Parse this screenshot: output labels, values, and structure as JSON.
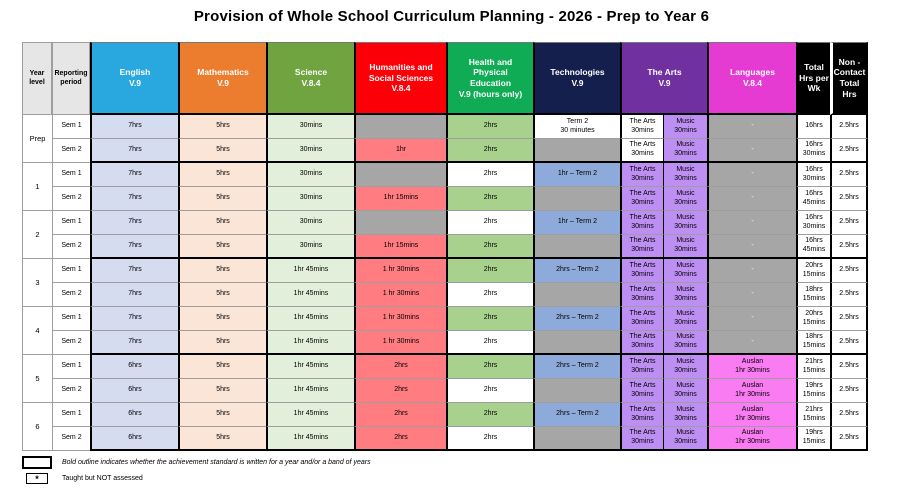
{
  "title": "Provision of Whole School Curriculum Planning - 2026 - Prep to Year 6",
  "palette": {
    "english": "#D6DCF0",
    "math": "#FBE5D6",
    "science": "#E2EFDA",
    "gray": "#A6A6A6",
    "salmon": "#FF7C80",
    "hpe_green": "#A9D18E",
    "white": "#FFFFFF",
    "tech_blue": "#8EAADB",
    "arts_purple": "#BE8FF2",
    "lang_pink": "#F97CF2"
  },
  "header": {
    "columns": [
      {
        "key": "year",
        "label": "Year level",
        "type": "corner"
      },
      {
        "key": "sem",
        "label": "Reporting period",
        "type": "corner"
      },
      {
        "key": "english",
        "label": "English\nV.9",
        "color": "#29A8E0"
      },
      {
        "key": "math",
        "label": "Mathematics\nV.9",
        "color": "#EC7D2F"
      },
      {
        "key": "science",
        "label": "Science\nV.8.4",
        "color": "#6FA441"
      },
      {
        "key": "hass",
        "label": "Humanities and\nSocial Sciences\nV.8.4",
        "color": "#FB0007"
      },
      {
        "key": "hpe",
        "label": "Health and\nPhysical\nEducation\nV.9 (hours only)",
        "color": "#10AC55"
      },
      {
        "key": "tech",
        "label": "Technologies\nV.9",
        "color": "#151F4E"
      },
      {
        "key": "arts",
        "label": "The Arts\nV.9",
        "color": "#7030A0",
        "span": 2
      },
      {
        "key": "lang",
        "label": "Languages\nV.8.4",
        "color": "#E63BD3"
      },
      {
        "key": "total",
        "label": "Total Hrs per Wk",
        "color": "#000000"
      },
      {
        "key": "nc",
        "label": "Non - Contact Total Hrs",
        "color": "#000000"
      }
    ]
  },
  "year_groups": [
    {
      "label": "Prep",
      "rows": [
        {
          "sem": "Sem 1",
          "english": {
            "text": "7hrs",
            "bg": "english"
          },
          "math": {
            "text": "5hrs",
            "bg": "math"
          },
          "science": {
            "text": "30mins",
            "bg": "science"
          },
          "hass": {
            "text": "",
            "bg": "gray"
          },
          "hpe": {
            "text": "2hrs",
            "bg": "hpe_green"
          },
          "tech": {
            "text": "Term 2\n30 minutes",
            "bg": "white"
          },
          "arts": [
            {
              "text": "The Arts\n30mins",
              "bg": "white"
            },
            {
              "text": "Music\n30mins",
              "bg": "arts_purple"
            }
          ],
          "lang": {
            "text": "-",
            "bg": "gray",
            "fg": "#fff"
          },
          "total": {
            "text": "16hrs",
            "bg": "white"
          },
          "nc": {
            "text": "2.5hrs",
            "bg": "white"
          }
        },
        {
          "sem": "Sem 2",
          "english": {
            "text": "7hrs",
            "bg": "english"
          },
          "math": {
            "text": "5hrs",
            "bg": "math"
          },
          "science": {
            "text": "30mins",
            "bg": "science"
          },
          "hass": {
            "text": "1hr",
            "bg": "salmon"
          },
          "hpe": {
            "text": "2hrs",
            "bg": "hpe_green"
          },
          "tech": {
            "text": "",
            "bg": "gray"
          },
          "arts": [
            {
              "text": "The Arts\n30mins",
              "bg": "white"
            },
            {
              "text": "Music\n30mins",
              "bg": "arts_purple"
            }
          ],
          "lang": {
            "text": "-",
            "bg": "gray",
            "fg": "#fff"
          },
          "total": {
            "text": "16hrs 30mins",
            "bg": "white"
          },
          "nc": {
            "text": "2.5hrs",
            "bg": "white"
          }
        }
      ]
    },
    {
      "label": "1",
      "rows": [
        {
          "sem": "Sem 1",
          "english": {
            "text": "7hrs",
            "bg": "english"
          },
          "math": {
            "text": "5hrs",
            "bg": "math"
          },
          "science": {
            "text": "30mins",
            "bg": "science"
          },
          "hass": {
            "text": "",
            "bg": "gray"
          },
          "hpe": {
            "text": "2hrs",
            "bg": "white"
          },
          "tech": {
            "text": "1hr – Term 2",
            "bg": "tech_blue"
          },
          "arts": [
            {
              "text": "The Arts\n30mins",
              "bg": "arts_purple"
            },
            {
              "text": "Music\n30mins",
              "bg": "arts_purple"
            }
          ],
          "lang": {
            "text": "-",
            "bg": "gray",
            "fg": "#fff"
          },
          "total": {
            "text": "16hrs 30mins",
            "bg": "white"
          },
          "nc": {
            "text": "2.5hrs",
            "bg": "white"
          }
        },
        {
          "sem": "Sem 2",
          "english": {
            "text": "7hrs",
            "bg": "english"
          },
          "math": {
            "text": "5hrs",
            "bg": "math"
          },
          "science": {
            "text": "30mins",
            "bg": "science"
          },
          "hass": {
            "text": "1hr 15mins",
            "bg": "salmon"
          },
          "hpe": {
            "text": "2hrs",
            "bg": "hpe_green"
          },
          "tech": {
            "text": "",
            "bg": "gray"
          },
          "arts": [
            {
              "text": "The Arts\n30mins",
              "bg": "arts_purple"
            },
            {
              "text": "Music\n30mins",
              "bg": "arts_purple"
            }
          ],
          "lang": {
            "text": "-",
            "bg": "gray",
            "fg": "#fff"
          },
          "total": {
            "text": "16hrs 45mins",
            "bg": "white"
          },
          "nc": {
            "text": "2.5hrs",
            "bg": "white"
          }
        }
      ]
    },
    {
      "label": "2",
      "rows": [
        {
          "sem": "Sem 1",
          "english": {
            "text": "7hrs",
            "bg": "english"
          },
          "math": {
            "text": "5hrs",
            "bg": "math"
          },
          "science": {
            "text": "30mins",
            "bg": "science"
          },
          "hass": {
            "text": "",
            "bg": "gray"
          },
          "hpe": {
            "text": "2hrs",
            "bg": "white"
          },
          "tech": {
            "text": "1hr – Term 2",
            "bg": "tech_blue"
          },
          "arts": [
            {
              "text": "The Arts\n30mins",
              "bg": "arts_purple"
            },
            {
              "text": "Music\n30mins",
              "bg": "arts_purple"
            }
          ],
          "lang": {
            "text": "-",
            "bg": "gray",
            "fg": "#fff"
          },
          "total": {
            "text": "16hrs 30mins",
            "bg": "white"
          },
          "nc": {
            "text": "2.5hrs",
            "bg": "white"
          }
        },
        {
          "sem": "Sem 2",
          "english": {
            "text": "7hrs",
            "bg": "english"
          },
          "math": {
            "text": "5hrs",
            "bg": "math"
          },
          "science": {
            "text": "30mins",
            "bg": "science"
          },
          "hass": {
            "text": "1hr 15mins",
            "bg": "salmon"
          },
          "hpe": {
            "text": "2hrs",
            "bg": "hpe_green"
          },
          "tech": {
            "text": "",
            "bg": "gray"
          },
          "arts": [
            {
              "text": "The Arts\n30mins",
              "bg": "arts_purple"
            },
            {
              "text": "Music\n30mins",
              "bg": "arts_purple"
            }
          ],
          "lang": {
            "text": "-",
            "bg": "gray",
            "fg": "#fff"
          },
          "total": {
            "text": "16hrs 45mins",
            "bg": "white"
          },
          "nc": {
            "text": "2.5hrs",
            "bg": "white"
          }
        }
      ]
    },
    {
      "label": "3",
      "rows": [
        {
          "sem": "Sem 1",
          "english": {
            "text": "7hrs",
            "bg": "english"
          },
          "math": {
            "text": "5hrs",
            "bg": "math"
          },
          "science": {
            "text": "1hr 45mins",
            "bg": "science"
          },
          "hass": {
            "text": "1 hr 30mins",
            "bg": "salmon"
          },
          "hpe": {
            "text": "2hrs",
            "bg": "hpe_green"
          },
          "tech": {
            "text": "2hrs – Term 2",
            "bg": "tech_blue"
          },
          "arts": [
            {
              "text": "The Arts\n30mins",
              "bg": "arts_purple"
            },
            {
              "text": "Music\n30mins",
              "bg": "arts_purple"
            }
          ],
          "lang": {
            "text": "-",
            "bg": "gray",
            "fg": "#fff"
          },
          "total": {
            "text": "20hrs 15mins",
            "bg": "white"
          },
          "nc": {
            "text": "2.5hrs",
            "bg": "white"
          }
        },
        {
          "sem": "Sem 2",
          "english": {
            "text": "7hrs",
            "bg": "english"
          },
          "math": {
            "text": "5hrs",
            "bg": "math"
          },
          "science": {
            "text": "1hr 45mins",
            "bg": "science"
          },
          "hass": {
            "text": "1 hr 30mins",
            "bg": "salmon"
          },
          "hpe": {
            "text": "2hrs",
            "bg": "white"
          },
          "tech": {
            "text": "",
            "bg": "gray"
          },
          "arts": [
            {
              "text": "The Arts\n30mins",
              "bg": "arts_purple"
            },
            {
              "text": "Music\n30mins",
              "bg": "arts_purple"
            }
          ],
          "lang": {
            "text": "-",
            "bg": "gray",
            "fg": "#fff"
          },
          "total": {
            "text": "18hrs 15mins",
            "bg": "white"
          },
          "nc": {
            "text": "2.5hrs",
            "bg": "white"
          }
        }
      ]
    },
    {
      "label": "4",
      "rows": [
        {
          "sem": "Sem 1",
          "english": {
            "text": "7hrs",
            "bg": "english"
          },
          "math": {
            "text": "5hrs",
            "bg": "math"
          },
          "science": {
            "text": "1hr 45mins",
            "bg": "science"
          },
          "hass": {
            "text": "1 hr 30mins",
            "bg": "salmon"
          },
          "hpe": {
            "text": "2hrs",
            "bg": "hpe_green"
          },
          "tech": {
            "text": "2hrs – Term 2",
            "bg": "tech_blue"
          },
          "arts": [
            {
              "text": "The Arts\n30mins",
              "bg": "arts_purple"
            },
            {
              "text": "Music\n30mins",
              "bg": "arts_purple"
            }
          ],
          "lang": {
            "text": "-",
            "bg": "gray",
            "fg": "#fff"
          },
          "total": {
            "text": "20hrs 15mins",
            "bg": "white"
          },
          "nc": {
            "text": "2.5hrs",
            "bg": "white"
          }
        },
        {
          "sem": "Sem 2",
          "english": {
            "text": "7hrs",
            "bg": "english"
          },
          "math": {
            "text": "5hrs",
            "bg": "math"
          },
          "science": {
            "text": "1hr 45mins",
            "bg": "science"
          },
          "hass": {
            "text": "1 hr 30mins",
            "bg": "salmon"
          },
          "hpe": {
            "text": "2hrs",
            "bg": "white"
          },
          "tech": {
            "text": "",
            "bg": "gray"
          },
          "arts": [
            {
              "text": "The Arts\n30mins",
              "bg": "arts_purple"
            },
            {
              "text": "Music\n30mins",
              "bg": "arts_purple"
            }
          ],
          "lang": {
            "text": "-",
            "bg": "gray",
            "fg": "#fff"
          },
          "total": {
            "text": "18hrs 15mins",
            "bg": "white"
          },
          "nc": {
            "text": "2.5hrs",
            "bg": "white"
          }
        }
      ]
    },
    {
      "label": "5",
      "rows": [
        {
          "sem": "Sem 1",
          "english": {
            "text": "6hrs",
            "bg": "english"
          },
          "math": {
            "text": "5hrs",
            "bg": "math"
          },
          "science": {
            "text": "1hr 45mins",
            "bg": "science"
          },
          "hass": {
            "text": "2hrs",
            "bg": "salmon"
          },
          "hpe": {
            "text": "2hrs",
            "bg": "hpe_green"
          },
          "tech": {
            "text": "2hrs – Term 2",
            "bg": "tech_blue"
          },
          "arts": [
            {
              "text": "The Arts\n30mins",
              "bg": "arts_purple"
            },
            {
              "text": "Music\n30mins",
              "bg": "arts_purple"
            }
          ],
          "lang": {
            "text": "Auslan\n1hr 30mins",
            "bg": "lang_pink"
          },
          "total": {
            "text": "21hrs 15mins",
            "bg": "white"
          },
          "nc": {
            "text": "2.5hrs",
            "bg": "white"
          }
        },
        {
          "sem": "Sem 2",
          "english": {
            "text": "6hrs",
            "bg": "english"
          },
          "math": {
            "text": "5hrs",
            "bg": "math"
          },
          "science": {
            "text": "1hr 45mins",
            "bg": "science"
          },
          "hass": {
            "text": "2hrs",
            "bg": "salmon"
          },
          "hpe": {
            "text": "2hrs",
            "bg": "white"
          },
          "tech": {
            "text": "",
            "bg": "gray"
          },
          "arts": [
            {
              "text": "The Arts\n30mins",
              "bg": "arts_purple"
            },
            {
              "text": "Music\n30mins",
              "bg": "arts_purple"
            }
          ],
          "lang": {
            "text": "Auslan\n1hr 30mins",
            "bg": "lang_pink"
          },
          "total": {
            "text": "19hrs 15mins",
            "bg": "white"
          },
          "nc": {
            "text": "2.5hrs",
            "bg": "white"
          }
        }
      ]
    },
    {
      "label": "6",
      "rows": [
        {
          "sem": "Sem 1",
          "english": {
            "text": "6hrs",
            "bg": "english"
          },
          "math": {
            "text": "5hrs",
            "bg": "math"
          },
          "science": {
            "text": "1hr 45mins",
            "bg": "science"
          },
          "hass": {
            "text": "2hrs",
            "bg": "salmon"
          },
          "hpe": {
            "text": "2hrs",
            "bg": "hpe_green"
          },
          "tech": {
            "text": "2hrs – Term 2",
            "bg": "tech_blue"
          },
          "arts": [
            {
              "text": "The Arts\n30mins",
              "bg": "arts_purple"
            },
            {
              "text": "Music\n30mins",
              "bg": "arts_purple"
            }
          ],
          "lang": {
            "text": "Auslan\n1hr 30mins",
            "bg": "lang_pink"
          },
          "total": {
            "text": "21hrs 15mins",
            "bg": "white"
          },
          "nc": {
            "text": "2.5hrs",
            "bg": "white"
          }
        },
        {
          "sem": "Sem 2",
          "english": {
            "text": "6hrs",
            "bg": "english"
          },
          "math": {
            "text": "5hrs",
            "bg": "math"
          },
          "science": {
            "text": "1hr 45mins",
            "bg": "science"
          },
          "hass": {
            "text": "2hrs",
            "bg": "salmon"
          },
          "hpe": {
            "text": "2hrs",
            "bg": "white"
          },
          "tech": {
            "text": "",
            "bg": "gray"
          },
          "arts": [
            {
              "text": "The Arts\n30mins",
              "bg": "arts_purple"
            },
            {
              "text": "Music\n30mins",
              "bg": "arts_purple"
            }
          ],
          "lang": {
            "text": "Auslan\n1hr 30mins",
            "bg": "lang_pink"
          },
          "total": {
            "text": "19hrs 15mins",
            "bg": "white"
          },
          "nc": {
            "text": "2.5hrs",
            "bg": "white"
          }
        }
      ]
    }
  ],
  "legend": {
    "items": [
      {
        "symbol": "",
        "text": "Bold outline indicates whether the achievement standard is written for a year and/or a band of years"
      },
      {
        "symbol": "*",
        "text": "Taught but NOT assessed"
      }
    ]
  }
}
